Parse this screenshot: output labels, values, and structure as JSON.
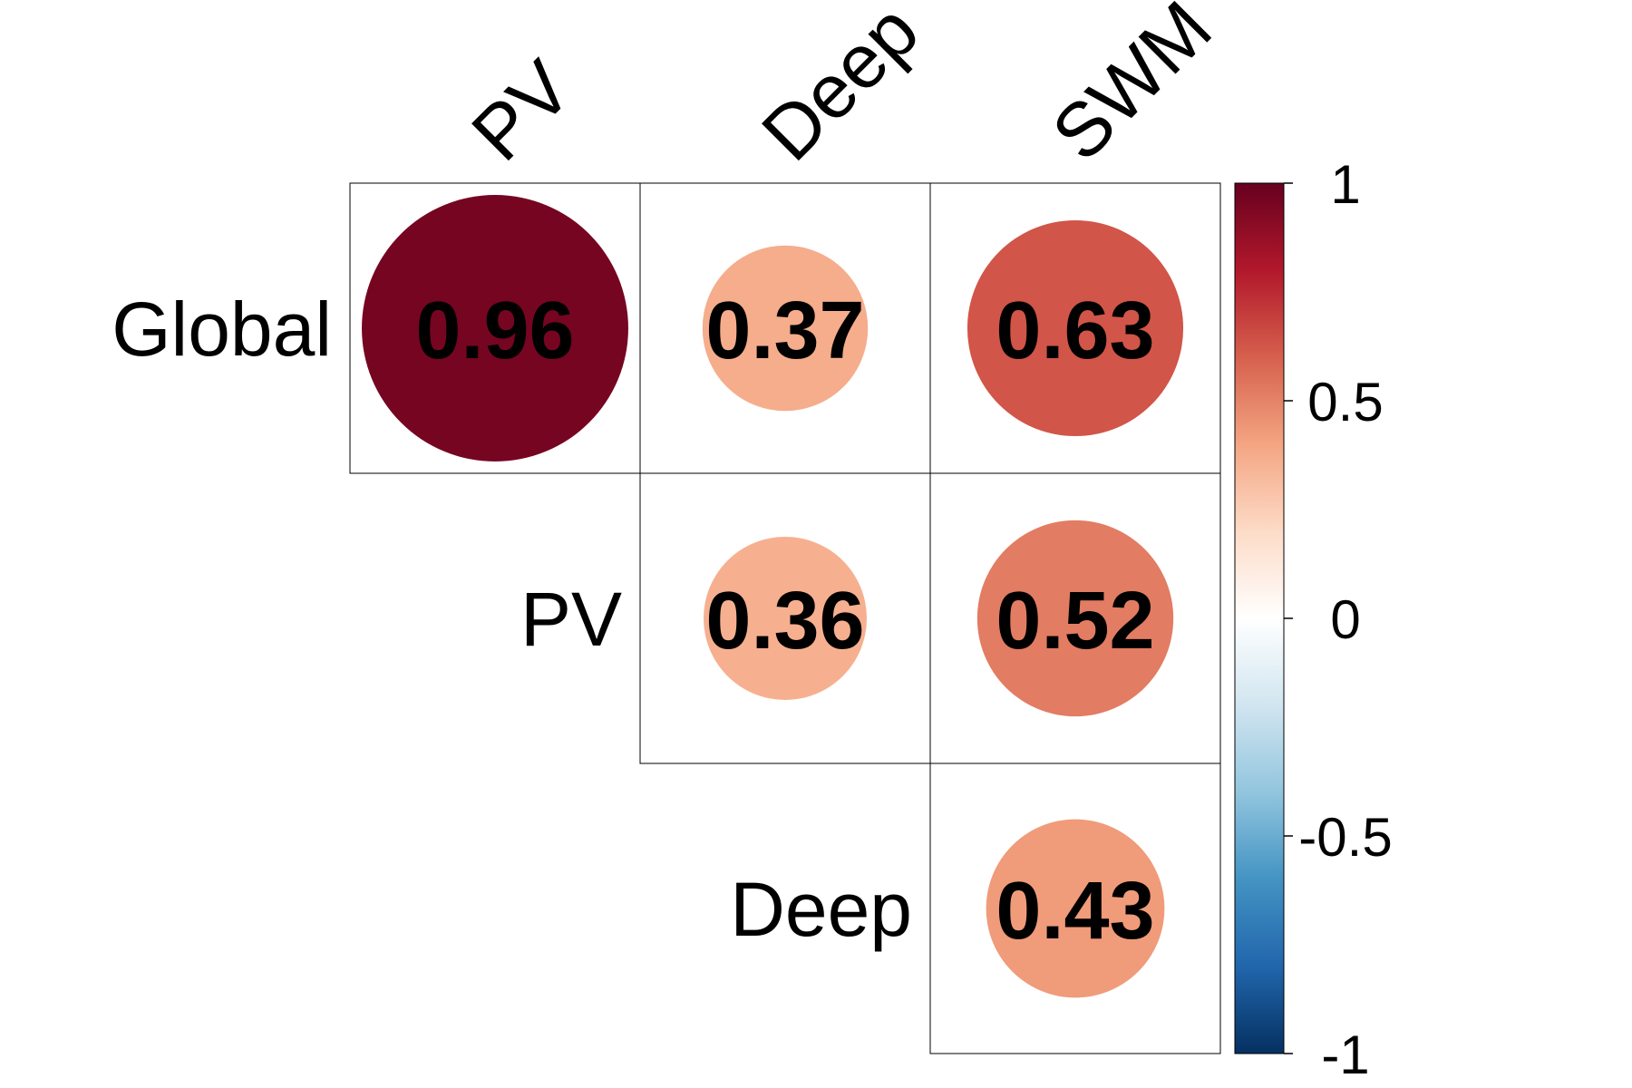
{
  "chart_data": {
    "type": "heatmap",
    "title": "",
    "columns": [
      "PV",
      "Deep",
      "SWM"
    ],
    "rows": [
      "Global",
      "PV",
      "Deep"
    ],
    "cells": [
      {
        "row": "Global",
        "col": "PV",
        "value": 0.96,
        "label": "0.96"
      },
      {
        "row": "Global",
        "col": "Deep",
        "value": 0.37,
        "label": "0.37"
      },
      {
        "row": "Global",
        "col": "SWM",
        "value": 0.63,
        "label": "0.63"
      },
      {
        "row": "PV",
        "col": "Deep",
        "value": 0.36,
        "label": "0.36"
      },
      {
        "row": "PV",
        "col": "SWM",
        "value": 0.52,
        "label": "0.52"
      },
      {
        "row": "Deep",
        "col": "SWM",
        "value": 0.43,
        "label": "0.43"
      }
    ],
    "colorbar": {
      "range": [
        -1,
        1
      ],
      "tick_values": [
        1,
        0.5,
        0,
        -0.5,
        -1
      ],
      "tick_labels": [
        "1",
        "0.5",
        "0",
        "-0.5",
        "-1"
      ],
      "colormap": [
        "#053061",
        "#2166ac",
        "#4393c3",
        "#92c5de",
        "#d1e5f0",
        "#ffffff",
        "#fddbc7",
        "#f4a582",
        "#d6604d",
        "#b2182b",
        "#67001f"
      ]
    },
    "marker": "circle",
    "layout": "upper-triangle"
  }
}
